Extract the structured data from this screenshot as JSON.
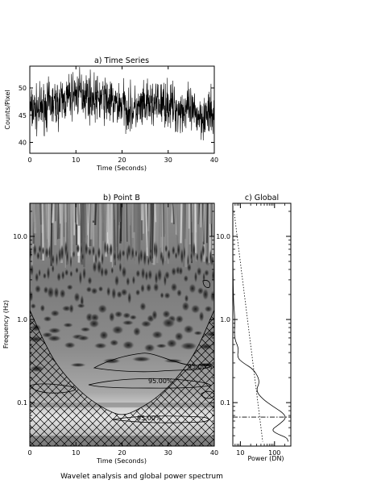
{
  "caption": "Wavelet analysis and global power spectrum",
  "chart_data": [
    {
      "id": "time-series",
      "type": "line",
      "title": "a) Time Series",
      "xlabel": "Time (Seconds)",
      "ylabel": "Counts/Pixel",
      "xlim": [
        0,
        40
      ],
      "ylim": [
        38,
        54
      ],
      "xticks": [
        "0",
        "10",
        "20",
        "30",
        "40"
      ],
      "yticks": [
        "40",
        "45",
        "50"
      ],
      "description_series": [
        {
          "x": 0,
          "y": 46
        },
        {
          "x": 2,
          "y": 46
        },
        {
          "x": 4,
          "y": 47
        },
        {
          "x": 6,
          "y": 47
        },
        {
          "x": 8,
          "y": 48
        },
        {
          "x": 10,
          "y": 49
        },
        {
          "x": 12,
          "y": 49
        },
        {
          "x": 14,
          "y": 48
        },
        {
          "x": 16,
          "y": 48
        },
        {
          "x": 18,
          "y": 47
        },
        {
          "x": 20,
          "y": 47
        },
        {
          "x": 22,
          "y": 46
        },
        {
          "x": 24,
          "y": 46
        },
        {
          "x": 26,
          "y": 47
        },
        {
          "x": 28,
          "y": 47
        },
        {
          "x": 30,
          "y": 47
        },
        {
          "x": 32,
          "y": 46
        },
        {
          "x": 34,
          "y": 46
        },
        {
          "x": 36,
          "y": 45
        },
        {
          "x": 38,
          "y": 45
        },
        {
          "x": 40,
          "y": 45
        }
      ]
    },
    {
      "id": "wavelet",
      "type": "heatmap",
      "title": "b) Point B",
      "xlabel": "Time (Seconds)",
      "ylabel": "Frequency (Hz)",
      "xlim": [
        0,
        40
      ],
      "ylim": [
        0.03,
        25
      ],
      "yscale": "log",
      "xticks": [
        "0",
        "10",
        "20",
        "30",
        "40"
      ],
      "yticks": [
        {
          "value": 10,
          "label": "10.0"
        },
        {
          "value": 1,
          "label": "1.0"
        },
        {
          "value": 0.1,
          "label": "0.1"
        }
      ],
      "contour_labels": [
        "95.00%",
        "95.00%",
        "95.00%"
      ],
      "cone_of_influence": [
        {
          "x": 0,
          "f": 1.3
        },
        {
          "x": 4,
          "f": 0.4
        },
        {
          "x": 8,
          "f": 0.2
        },
        {
          "x": 12,
          "f": 0.12
        },
        {
          "x": 16,
          "f": 0.085
        },
        {
          "x": 20,
          "f": 0.068
        },
        {
          "x": 24,
          "f": 0.085
        },
        {
          "x": 28,
          "f": 0.12
        },
        {
          "x": 32,
          "f": 0.2
        },
        {
          "x": 36,
          "f": 0.4
        },
        {
          "x": 40,
          "f": 1.3
        }
      ]
    },
    {
      "id": "global",
      "type": "line",
      "title": "c) Global",
      "xlabel": "Power (DN)",
      "xscale": "log",
      "yscale": "log",
      "xlim": [
        6,
        300
      ],
      "ylim": [
        0.03,
        25
      ],
      "xticks": [
        {
          "value": 10,
          "label": "10"
        },
        {
          "value": 100,
          "label": "100"
        }
      ],
      "yticks": [
        {
          "value": 10,
          "label": "10.0"
        },
        {
          "value": 1,
          "label": "1.0"
        },
        {
          "value": 0.1,
          "label": "0.1"
        }
      ],
      "spectrum": [
        {
          "p": 6,
          "f": 20
        },
        {
          "p": 6,
          "f": 2
        },
        {
          "p": 7,
          "f": 1.0
        },
        {
          "p": 6.5,
          "f": 0.6
        },
        {
          "p": 9,
          "f": 0.45
        },
        {
          "p": 8,
          "f": 0.35
        },
        {
          "p": 12,
          "f": 0.3
        },
        {
          "p": 25,
          "f": 0.25
        },
        {
          "p": 38,
          "f": 0.18
        },
        {
          "p": 28,
          "f": 0.14
        },
        {
          "p": 45,
          "f": 0.11
        },
        {
          "p": 90,
          "f": 0.09
        },
        {
          "p": 180,
          "f": 0.075
        },
        {
          "p": 220,
          "f": 0.065
        },
        {
          "p": 140,
          "f": 0.055
        },
        {
          "p": 80,
          "f": 0.047
        },
        {
          "p": 120,
          "f": 0.042
        },
        {
          "p": 230,
          "f": 0.038
        },
        {
          "p": 250,
          "f": 0.034
        }
      ],
      "significance": [
        {
          "p": 6.5,
          "f": 20
        },
        {
          "p": 45,
          "f": 0.034
        }
      ],
      "dashed_line_f": 0.067
    }
  ]
}
